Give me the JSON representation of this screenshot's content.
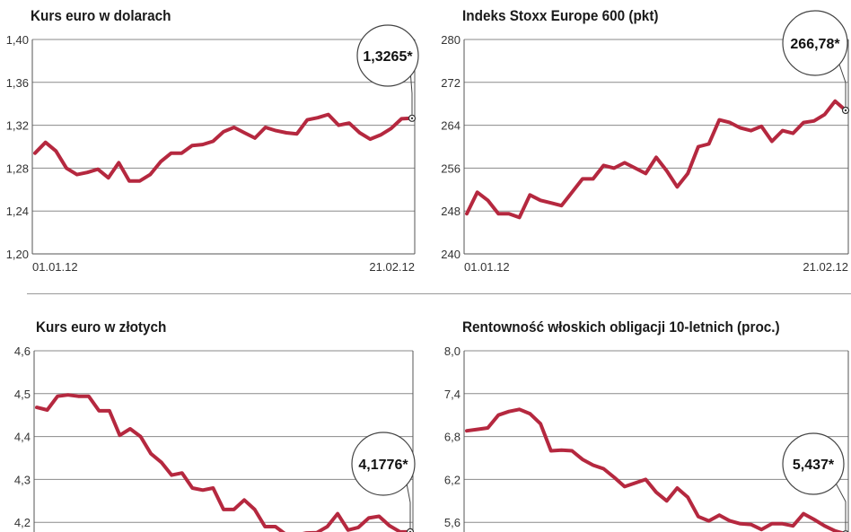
{
  "accent_color": "#b5283f",
  "chart_data": [
    {
      "type": "line",
      "title": "Kurs euro w dolarach",
      "ylim": [
        1.2,
        1.4
      ],
      "yticks": [
        "1,20",
        "1,24",
        "1,28",
        "1,32",
        "1,36",
        "1,40"
      ],
      "ytick_values": [
        1.2,
        1.24,
        1.28,
        1.32,
        1.36,
        1.4
      ],
      "xticks": [
        "01.01.12",
        "21.02.12"
      ],
      "callout": "1,3265*",
      "values": [
        1.294,
        1.304,
        1.296,
        1.28,
        1.274,
        1.276,
        1.279,
        1.271,
        1.285,
        1.268,
        1.268,
        1.274,
        1.286,
        1.294,
        1.294,
        1.301,
        1.302,
        1.305,
        1.314,
        1.318,
        1.313,
        1.308,
        1.318,
        1.315,
        1.313,
        1.312,
        1.325,
        1.327,
        1.33,
        1.32,
        1.322,
        1.313,
        1.307,
        1.311,
        1.317,
        1.326,
        1.3265
      ]
    },
    {
      "type": "line",
      "title": "Indeks Stoxx Europe 600 (pkt)",
      "ylim": [
        240,
        280
      ],
      "yticks": [
        "240",
        "248",
        "256",
        "264",
        "272",
        "280"
      ],
      "ytick_values": [
        240,
        248,
        256,
        264,
        272,
        280
      ],
      "xticks": [
        "01.01.12",
        "21.02.12"
      ],
      "callout": "266,78*",
      "values": [
        247.5,
        251.5,
        250.0,
        247.5,
        247.5,
        246.8,
        251.0,
        250.0,
        249.5,
        249.0,
        251.5,
        254.0,
        254.0,
        256.5,
        256.0,
        257.0,
        256.0,
        255.0,
        258.0,
        255.5,
        252.5,
        255.0,
        260.0,
        260.5,
        265.0,
        264.5,
        263.5,
        263.0,
        263.8,
        261.0,
        263.0,
        262.5,
        264.5,
        264.8,
        266.0,
        268.5,
        266.78
      ]
    },
    {
      "type": "line",
      "title": "Kurs euro w złotych",
      "ylim": [
        4.1,
        4.6
      ],
      "yticks": [
        "4,2",
        "4,3",
        "4,4",
        "4,5",
        "4,6"
      ],
      "ytick_values": [
        4.2,
        4.3,
        4.4,
        4.5,
        4.6
      ],
      "xticks": [],
      "callout": "4,1776*",
      "values": [
        4.468,
        4.462,
        4.494,
        4.497,
        4.494,
        4.494,
        4.46,
        4.46,
        4.403,
        4.418,
        4.4,
        4.36,
        4.34,
        4.31,
        4.315,
        4.28,
        4.275,
        4.28,
        4.23,
        4.23,
        4.252,
        4.23,
        4.19,
        4.19,
        4.172,
        4.17,
        4.175,
        4.176,
        4.19,
        4.22,
        4.182,
        4.188,
        4.21,
        4.214,
        4.192,
        4.178,
        4.1776
      ]
    },
    {
      "type": "line",
      "title": "Rentowność włoskich obligacji 10-letnich (proc.)",
      "ylim": [
        5.0,
        8.0
      ],
      "yticks": [
        "5,6",
        "6,2",
        "6,8",
        "7,4",
        "8,0"
      ],
      "ytick_values": [
        5.6,
        6.2,
        6.8,
        7.4,
        8.0
      ],
      "xticks": [],
      "callout": "5,437*",
      "values": [
        6.88,
        6.9,
        6.92,
        7.1,
        7.15,
        7.18,
        7.12,
        6.98,
        6.6,
        6.61,
        6.6,
        6.48,
        6.4,
        6.35,
        6.23,
        6.1,
        6.15,
        6.2,
        6.02,
        5.9,
        6.08,
        5.95,
        5.68,
        5.62,
        5.7,
        5.62,
        5.58,
        5.57,
        5.5,
        5.58,
        5.58,
        5.55,
        5.72,
        5.64,
        5.55,
        5.48,
        5.437
      ]
    }
  ]
}
